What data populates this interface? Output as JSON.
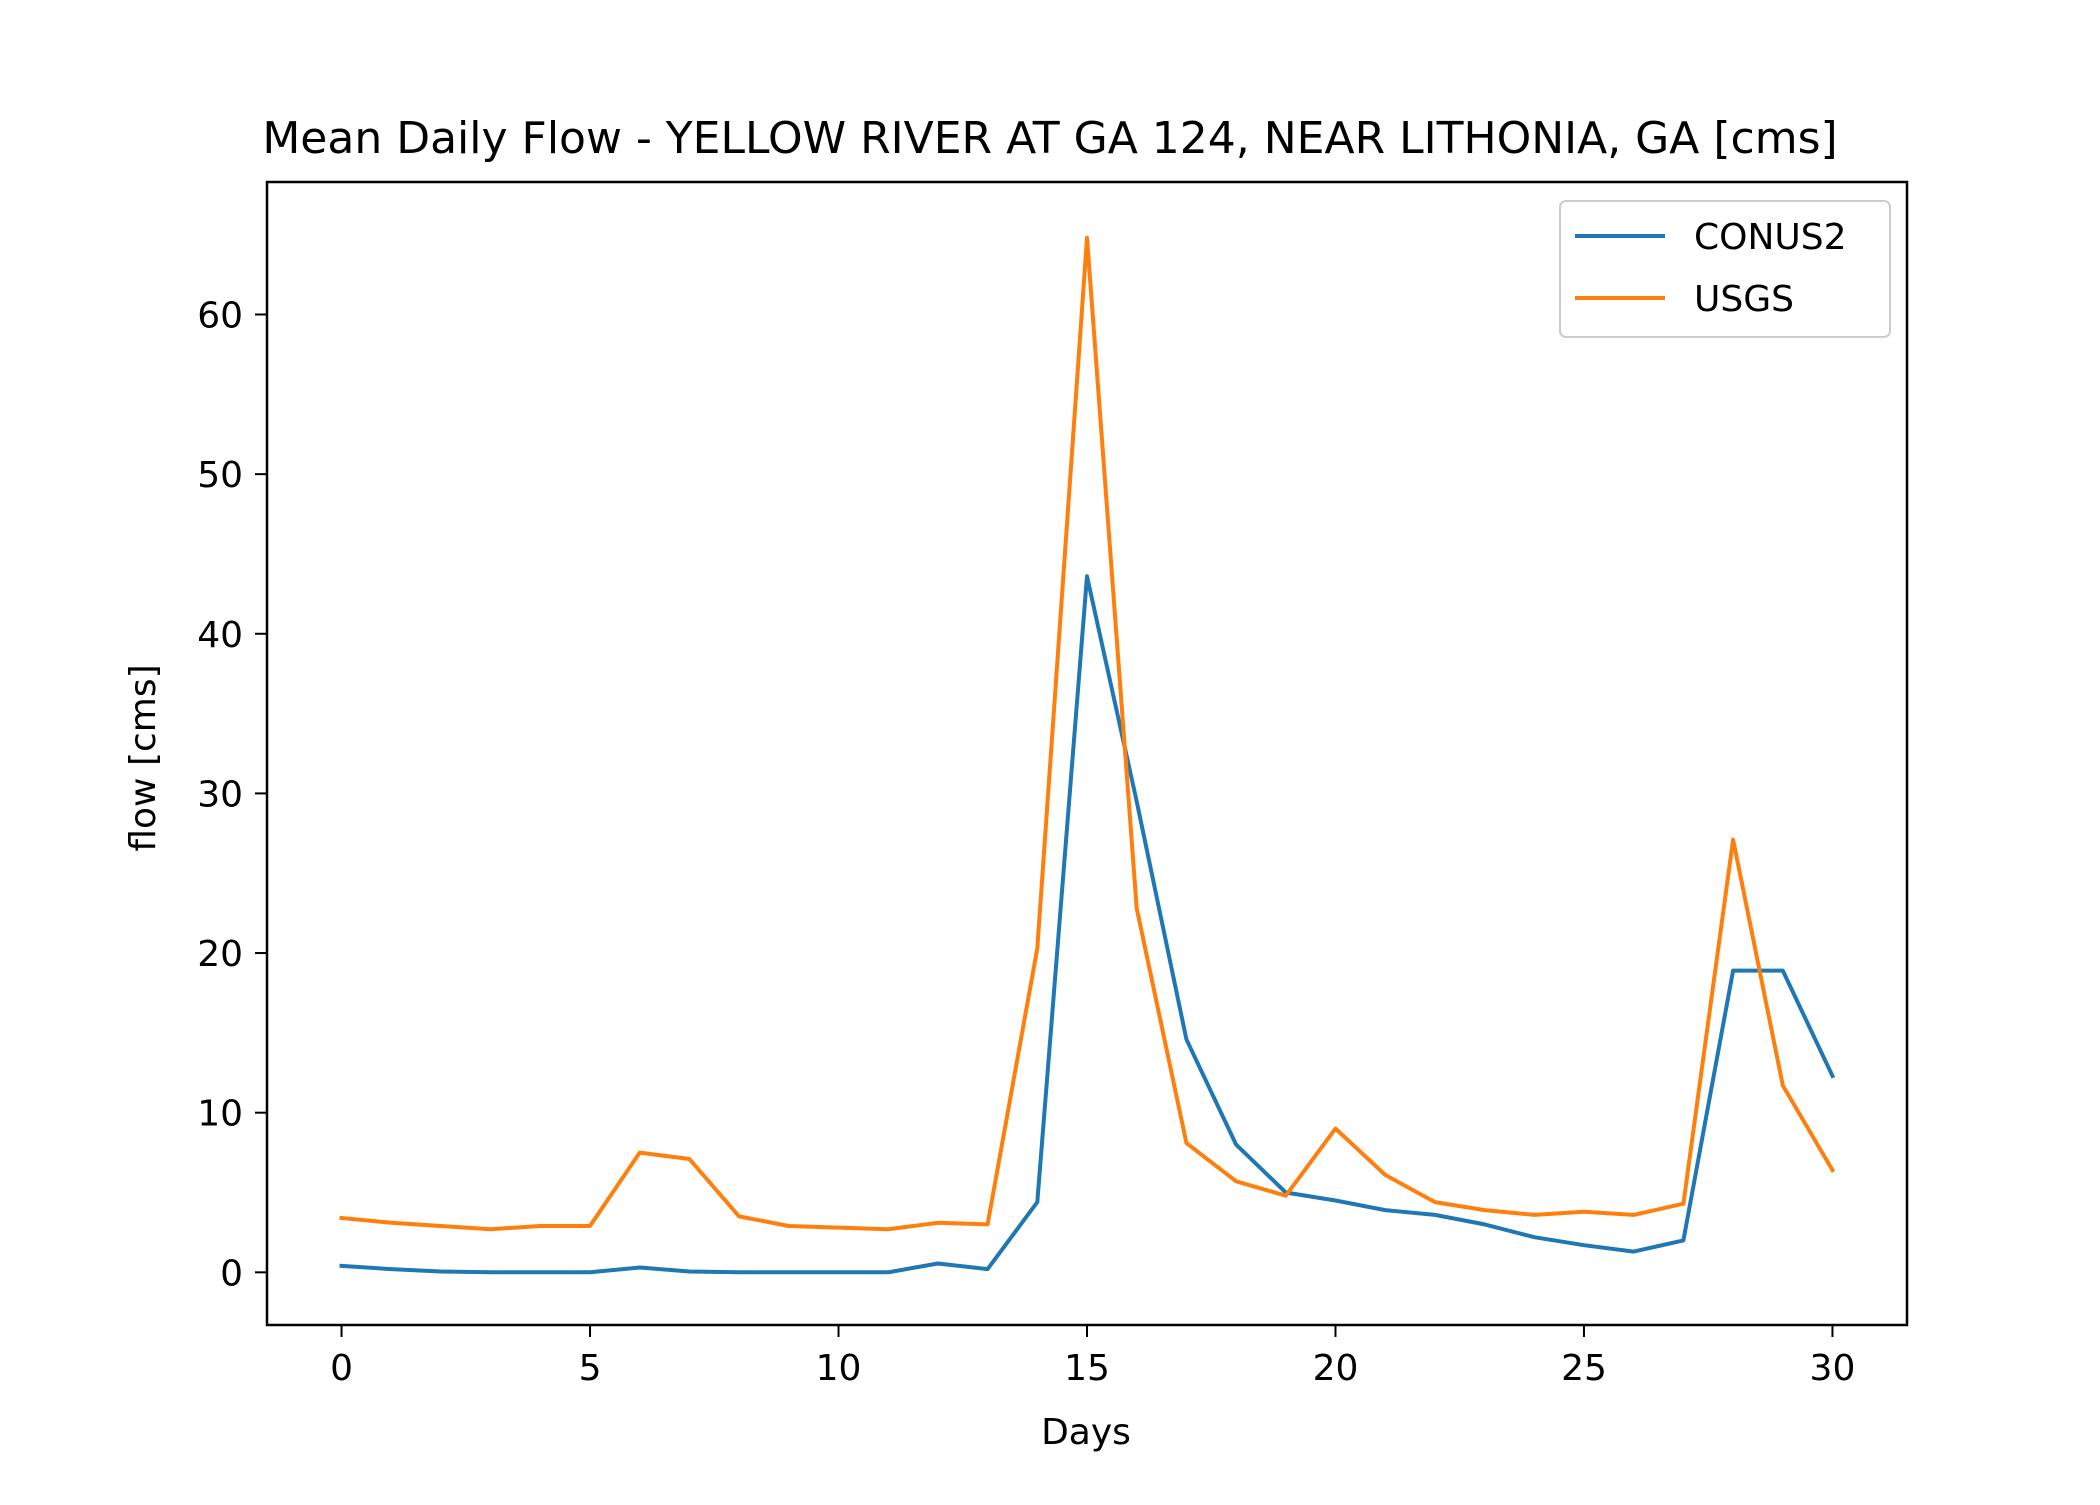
{
  "chart_data": {
    "type": "line",
    "title": "Mean Daily Flow - YELLOW RIVER AT GA 124, NEAR LITHONIA, GA [cms]",
    "xlabel": "Days",
    "ylabel": "flow [cms]",
    "xlim": [
      -1.5,
      31.5
    ],
    "ylim": [
      -3.3,
      68.3
    ],
    "xticks": [
      0,
      5,
      10,
      15,
      20,
      25,
      30
    ],
    "yticks": [
      0,
      10,
      20,
      30,
      40,
      50,
      60
    ],
    "grid": false,
    "legend_position": "top-right",
    "x": [
      0,
      1,
      2,
      3,
      4,
      5,
      6,
      7,
      8,
      9,
      10,
      11,
      12,
      13,
      14,
      15,
      16,
      17,
      18,
      19,
      20,
      21,
      22,
      23,
      24,
      25,
      26,
      27,
      28,
      29,
      30
    ],
    "series": [
      {
        "name": "CONUS2",
        "color": "#1f77b4",
        "values": [
          0.4,
          0.2,
          0.05,
          0.0,
          0.0,
          0.0,
          0.3,
          0.05,
          0.0,
          0.0,
          0.0,
          0.0,
          0.55,
          0.2,
          4.4,
          43.6,
          29.5,
          14.6,
          8.0,
          5.0,
          4.5,
          3.9,
          3.6,
          3.0,
          2.2,
          1.7,
          1.3,
          2.0,
          18.9,
          18.9,
          12.3
        ]
      },
      {
        "name": "USGS",
        "color": "#ff7f0e",
        "values": [
          3.4,
          3.1,
          2.9,
          2.7,
          2.9,
          2.9,
          7.5,
          7.1,
          3.5,
          2.9,
          2.8,
          2.7,
          3.1,
          3.0,
          20.3,
          64.8,
          22.8,
          8.1,
          5.7,
          4.8,
          9.0,
          6.1,
          4.4,
          3.9,
          3.6,
          3.8,
          3.6,
          4.3,
          27.1,
          11.7,
          6.4
        ]
      }
    ]
  }
}
